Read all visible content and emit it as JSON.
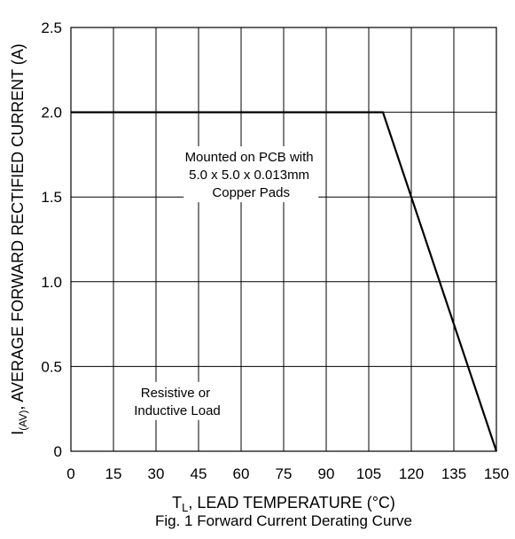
{
  "chart_data": {
    "type": "line",
    "title": "",
    "caption": "Fig. 1 Forward Current Derating Curve",
    "xlabel": {
      "main": "T",
      "sub": "L",
      "rest": ", LEAD TEMPERATURE (°C)"
    },
    "ylabel": {
      "main": "I",
      "sub": "(AV)",
      "rest": ", AVERAGE FORWARD RECTIFIED CURRENT (A)"
    },
    "xlim": [
      0,
      150
    ],
    "ylim": [
      0,
      2.5
    ],
    "x_ticks": [
      0,
      15,
      30,
      45,
      60,
      75,
      90,
      105,
      120,
      135,
      150
    ],
    "x_tick_labels": [
      "0",
      "15",
      "30",
      "45",
      "60",
      "75",
      "90",
      "105",
      "120",
      "135",
      "150"
    ],
    "y_ticks": [
      0,
      0.5,
      1.0,
      1.5,
      2.0,
      2.5
    ],
    "y_tick_labels": [
      "0",
      "0.5",
      "1.0",
      "1.5",
      "2.0",
      "2.5"
    ],
    "grid": true,
    "series": [
      {
        "name": "",
        "x": [
          0,
          110,
          150
        ],
        "y": [
          2.0,
          2.0,
          0
        ]
      }
    ],
    "annotations": [
      {
        "lines": [
          "Mounted on PCB with",
          "5.0 x 5.0 x 0.013mm",
          "Copper Pads"
        ]
      },
      {
        "lines": [
          "Resistive or",
          "Inductive Load"
        ]
      }
    ]
  }
}
